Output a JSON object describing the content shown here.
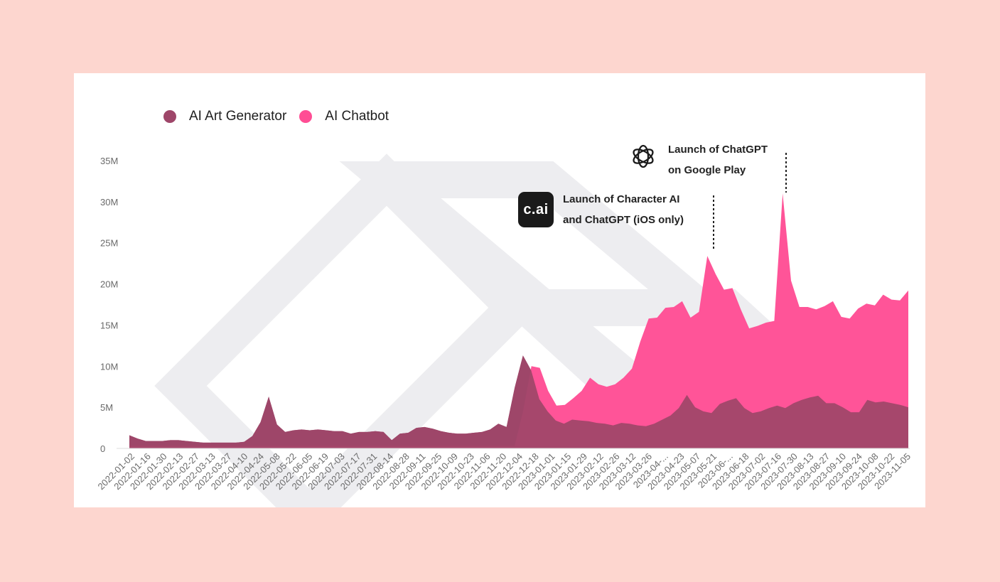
{
  "legend": [
    {
      "name": "AI Art Generator",
      "color": "#9E4669"
    },
    {
      "name": "AI Chatbot",
      "color": "#FF4D94"
    }
  ],
  "annotations": [
    {
      "logo": "c.ai",
      "line1": "Launch of Character AI",
      "line2": "and ChatGPT (iOS only)",
      "x": "2023-05-21"
    },
    {
      "logo": "openai-icon",
      "line1": "Launch of ChatGPT",
      "line2": "on Google Play",
      "x": "2023-07-30"
    }
  ],
  "chart_data": {
    "type": "area",
    "stacking": "overlapping",
    "y_ticks": [
      "0",
      "5M",
      "10M",
      "15M",
      "20M",
      "25M",
      "30M",
      "35M"
    ],
    "y_tick_values": [
      0,
      5,
      10,
      15,
      20,
      25,
      30,
      35
    ],
    "ylim": [
      0,
      35
    ],
    "y_unit": "M",
    "x_ticks": [
      "2022-01-02",
      "2022-01-16",
      "2022-01-30",
      "2022-02-13",
      "2022-02-27",
      "2022-03-13",
      "2022-03-27",
      "2022-04-10",
      "2022-04-24",
      "2022-05-08",
      "2022-05-22",
      "2022-06-05",
      "2022-06-19",
      "2022-07-03",
      "2022-07-17",
      "2022-07-31",
      "2022-08-14",
      "2022-08-28",
      "2022-09-11",
      "2022-09-25",
      "2022-10-09",
      "2022-10-23",
      "2022-11-06",
      "2022-11-20",
      "2022-12-04",
      "2022-12-18",
      "2023-01-01",
      "2023-01-15",
      "2023-01-29",
      "2023-02-12",
      "2023-02-26",
      "2023-03-12",
      "2023-03-26",
      "2023-04-...",
      "2023-04-23",
      "2023-05-07",
      "2023-05-21",
      "2023-06-...",
      "2023-06-18",
      "2023-07-02",
      "2023-07-16",
      "2023-07-30",
      "2023-08-13",
      "2023-08-27",
      "2023-09-10",
      "2023-09-24",
      "2023-10-08",
      "2023-10-22",
      "2023-11-05"
    ],
    "series": [
      {
        "name": "AI Art Generator",
        "color": "#9E4669",
        "values": [
          1.6,
          1.2,
          0.9,
          0.9,
          0.9,
          1.0,
          1.0,
          0.9,
          0.8,
          0.7,
          0.7,
          0.7,
          0.7,
          0.7,
          0.8,
          1.5,
          3.2,
          6.3,
          2.9,
          2.0,
          2.2,
          2.3,
          2.2,
          2.3,
          2.2,
          2.1,
          2.1,
          1.8,
          2.0,
          2.0,
          2.1,
          2.0,
          1.0,
          1.8,
          1.9,
          2.5,
          2.6,
          2.4,
          2.1,
          1.9,
          1.8,
          1.8,
          1.9,
          2.0,
          2.3,
          3.0,
          2.6,
          7.4,
          11.3,
          9.5,
          6.0,
          4.5,
          3.4,
          3.0,
          3.5,
          3.4,
          3.3,
          3.1,
          3.0,
          2.8,
          3.1,
          3.0,
          2.8,
          2.7,
          3.0,
          3.5,
          4.0,
          4.9,
          6.5,
          5.0,
          4.5,
          4.3,
          5.4,
          5.8,
          6.1,
          4.9,
          4.3,
          4.5,
          4.9,
          5.2,
          4.9,
          5.5,
          5.9,
          6.2,
          6.4,
          5.5,
          5.5,
          5.0,
          4.4,
          4.4,
          5.9,
          5.6,
          5.7,
          5.5,
          5.3,
          5.0
        ]
      },
      {
        "name": "AI Chatbot",
        "color": "#FF4D94",
        "values": [
          0.3,
          0.3,
          0.3,
          0.3,
          0.3,
          0.3,
          0.3,
          0.3,
          0.3,
          0.3,
          0.3,
          0.3,
          0.3,
          0.3,
          0.3,
          0.3,
          0.3,
          0.3,
          0.3,
          0.3,
          0.3,
          0.3,
          0.3,
          0.3,
          0.3,
          0.3,
          0.3,
          0.3,
          0.3,
          0.3,
          0.3,
          0.3,
          0.3,
          0.3,
          0.3,
          0.3,
          0.3,
          0.3,
          0.3,
          0.3,
          0.3,
          0.3,
          0.3,
          0.3,
          0.3,
          0.3,
          0.3,
          4.5,
          10.0,
          9.8,
          7.0,
          5.2,
          5.3,
          6.1,
          7.0,
          8.6,
          7.8,
          7.5,
          7.8,
          8.6,
          9.7,
          13.0,
          15.8,
          15.9,
          17.1,
          17.2,
          17.9,
          15.9,
          16.6,
          23.4,
          21.2,
          19.3,
          19.5,
          16.9,
          14.6,
          14.9,
          15.3,
          15.5,
          31.0,
          20.4,
          17.2,
          17.2,
          16.9,
          17.3,
          17.9,
          16.0,
          15.8,
          17.0,
          17.6,
          17.4,
          18.7,
          18.1,
          18.0,
          19.2
        ]
      }
    ]
  }
}
